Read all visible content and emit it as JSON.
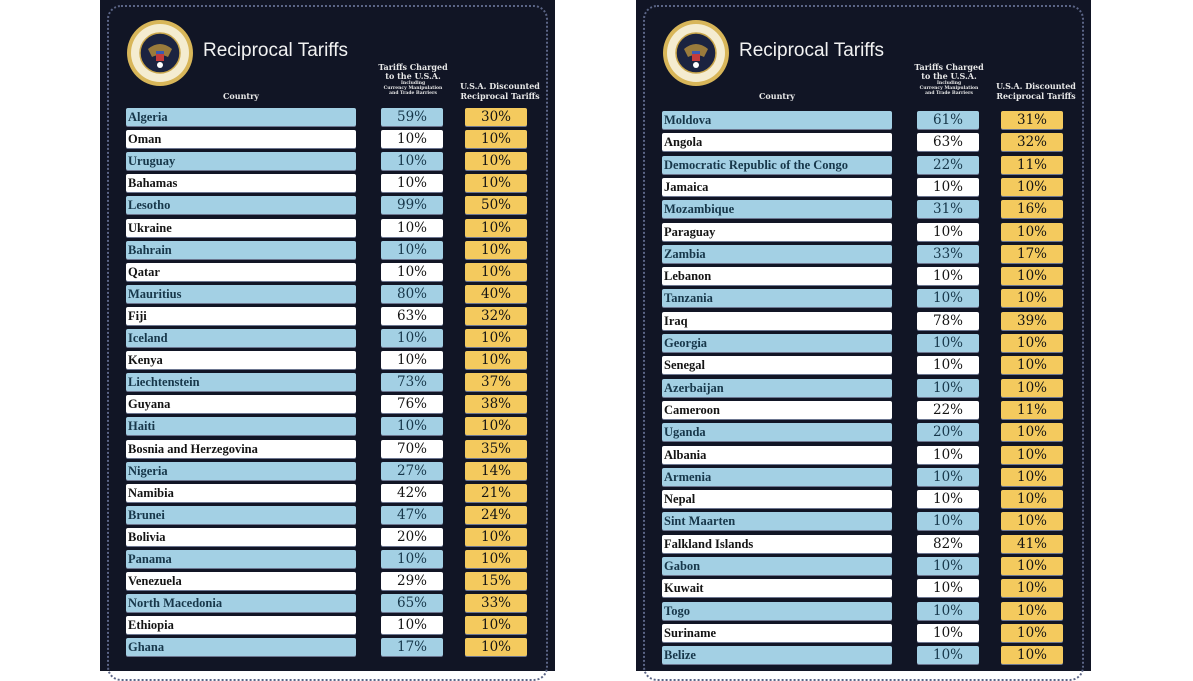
{
  "colors": {
    "background": "#111525",
    "row_blue": "#a3d0e4",
    "row_white": "#ffffff",
    "discount": "#f4ca5e"
  },
  "seal": {
    "text": "SEAL OF THE PRESIDENT OF THE UNITED STATES"
  },
  "panels": [
    {
      "title": "Reciprocal Tariffs",
      "headers": {
        "country": "Country",
        "charged_line1": "Tariffs Charged",
        "charged_line2": "to the U.S.A.",
        "charged_sub1": "Including",
        "charged_sub2": "Currency Manipulation",
        "charged_sub3": "and Trade Barriers",
        "discount_line1": "U.S.A. Discounted",
        "discount_line2": "Reciprocal Tariffs"
      },
      "rows": [
        {
          "country": "Algeria",
          "charged": "59%",
          "discounted": "30%"
        },
        {
          "country": "Oman",
          "charged": "10%",
          "discounted": "10%"
        },
        {
          "country": "Uruguay",
          "charged": "10%",
          "discounted": "10%"
        },
        {
          "country": "Bahamas",
          "charged": "10%",
          "discounted": "10%"
        },
        {
          "country": "Lesotho",
          "charged": "99%",
          "discounted": "50%"
        },
        {
          "country": "Ukraine",
          "charged": "10%",
          "discounted": "10%"
        },
        {
          "country": "Bahrain",
          "charged": "10%",
          "discounted": "10%"
        },
        {
          "country": "Qatar",
          "charged": "10%",
          "discounted": "10%"
        },
        {
          "country": "Mauritius",
          "charged": "80%",
          "discounted": "40%"
        },
        {
          "country": "Fiji",
          "charged": "63%",
          "discounted": "32%"
        },
        {
          "country": "Iceland",
          "charged": "10%",
          "discounted": "10%"
        },
        {
          "country": "Kenya",
          "charged": "10%",
          "discounted": "10%"
        },
        {
          "country": "Liechtenstein",
          "charged": "73%",
          "discounted": "37%"
        },
        {
          "country": "Guyana",
          "charged": "76%",
          "discounted": "38%"
        },
        {
          "country": "Haiti",
          "charged": "10%",
          "discounted": "10%"
        },
        {
          "country": "Bosnia and Herzegovina",
          "charged": "70%",
          "discounted": "35%"
        },
        {
          "country": "Nigeria",
          "charged": "27%",
          "discounted": "14%"
        },
        {
          "country": "Namibia",
          "charged": "42%",
          "discounted": "21%"
        },
        {
          "country": "Brunei",
          "charged": "47%",
          "discounted": "24%"
        },
        {
          "country": "Bolivia",
          "charged": "20%",
          "discounted": "10%"
        },
        {
          "country": "Panama",
          "charged": "10%",
          "discounted": "10%"
        },
        {
          "country": "Venezuela",
          "charged": "29%",
          "discounted": "15%"
        },
        {
          "country": "North Macedonia",
          "charged": "65%",
          "discounted": "33%"
        },
        {
          "country": "Ethiopia",
          "charged": "10%",
          "discounted": "10%"
        },
        {
          "country": "Ghana",
          "charged": "17%",
          "discounted": "10%"
        }
      ]
    },
    {
      "title": "Reciprocal Tariffs",
      "headers": {
        "country": "Country",
        "charged_line1": "Tariffs Charged",
        "charged_line2": "to the U.S.A.",
        "charged_sub1": "Including",
        "charged_sub2": "Currency Manipulation",
        "charged_sub3": "and Trade Barriers",
        "discount_line1": "U.S.A. Discounted",
        "discount_line2": "Reciprocal Tariffs"
      },
      "rows": [
        {
          "country": "Moldova",
          "charged": "61%",
          "discounted": "31%"
        },
        {
          "country": "Angola",
          "charged": "63%",
          "discounted": "32%"
        },
        {
          "country": "Democratic Republic of the Congo",
          "charged": "22%",
          "discounted": "11%"
        },
        {
          "country": "Jamaica",
          "charged": "10%",
          "discounted": "10%"
        },
        {
          "country": "Mozambique",
          "charged": "31%",
          "discounted": "16%"
        },
        {
          "country": "Paraguay",
          "charged": "10%",
          "discounted": "10%"
        },
        {
          "country": "Zambia",
          "charged": "33%",
          "discounted": "17%"
        },
        {
          "country": "Lebanon",
          "charged": "10%",
          "discounted": "10%"
        },
        {
          "country": "Tanzania",
          "charged": "10%",
          "discounted": "10%"
        },
        {
          "country": "Iraq",
          "charged": "78%",
          "discounted": "39%"
        },
        {
          "country": "Georgia",
          "charged": "10%",
          "discounted": "10%"
        },
        {
          "country": "Senegal",
          "charged": "10%",
          "discounted": "10%"
        },
        {
          "country": "Azerbaijan",
          "charged": "10%",
          "discounted": "10%"
        },
        {
          "country": "Cameroon",
          "charged": "22%",
          "discounted": "11%"
        },
        {
          "country": "Uganda",
          "charged": "20%",
          "discounted": "10%"
        },
        {
          "country": "Albania",
          "charged": "10%",
          "discounted": "10%"
        },
        {
          "country": "Armenia",
          "charged": "10%",
          "discounted": "10%"
        },
        {
          "country": "Nepal",
          "charged": "10%",
          "discounted": "10%"
        },
        {
          "country": "Sint Maarten",
          "charged": "10%",
          "discounted": "10%"
        },
        {
          "country": "Falkland Islands",
          "charged": "82%",
          "discounted": "41%"
        },
        {
          "country": "Gabon",
          "charged": "10%",
          "discounted": "10%"
        },
        {
          "country": "Kuwait",
          "charged": "10%",
          "discounted": "10%"
        },
        {
          "country": "Togo",
          "charged": "10%",
          "discounted": "10%"
        },
        {
          "country": "Suriname",
          "charged": "10%",
          "discounted": "10%"
        },
        {
          "country": "Belize",
          "charged": "10%",
          "discounted": "10%"
        }
      ]
    }
  ]
}
